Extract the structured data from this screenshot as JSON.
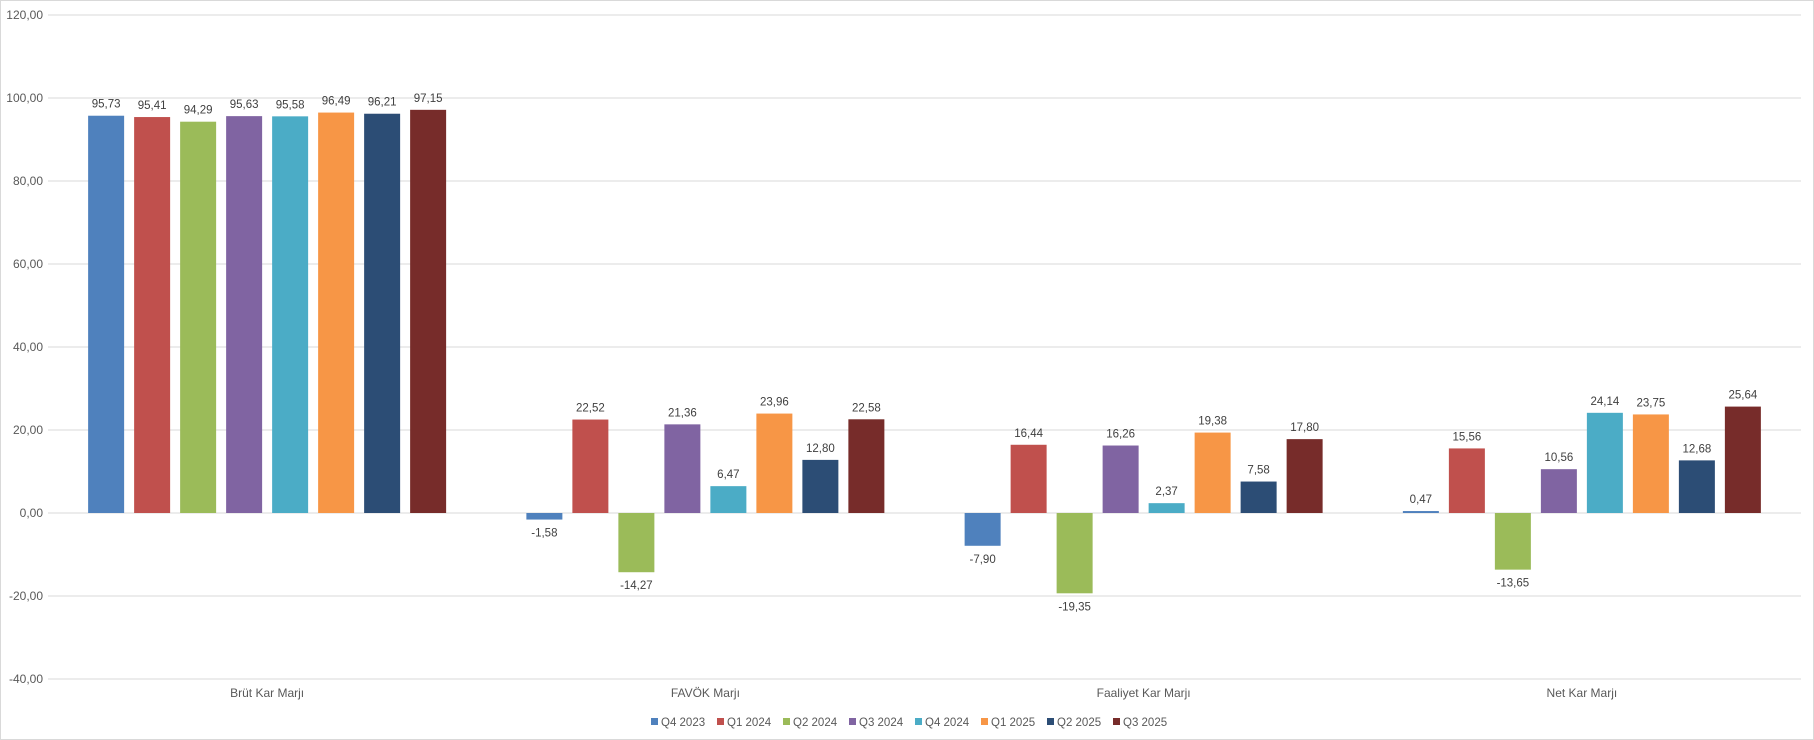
{
  "chart_data": {
    "type": "bar",
    "categories": [
      "Brüt Kar Marjı",
      "FAVÖK Marjı",
      "Faaliyet Kar Marjı",
      "Net Kar Marjı"
    ],
    "series": [
      {
        "name": "Q4 2023",
        "color": "#4f81bd",
        "values": [
          95.73,
          -1.58,
          -7.9,
          0.47
        ],
        "labels": [
          "95,73",
          "-1,58",
          "-7,90",
          "0,47"
        ]
      },
      {
        "name": "Q1 2024",
        "color": "#c0504d",
        "values": [
          95.41,
          22.52,
          16.44,
          15.56
        ],
        "labels": [
          "95,41",
          "22,52",
          "16,44",
          "15,56"
        ]
      },
      {
        "name": "Q2 2024",
        "color": "#9bbb59",
        "values": [
          94.29,
          -14.27,
          -19.35,
          -13.65
        ],
        "labels": [
          "94,29",
          "-14,27",
          "-19,35",
          "-13,65"
        ]
      },
      {
        "name": "Q3 2024",
        "color": "#8064a2",
        "values": [
          95.63,
          21.36,
          16.26,
          10.56
        ],
        "labels": [
          "95,63",
          "21,36",
          "16,26",
          "10,56"
        ]
      },
      {
        "name": "Q4 2024",
        "color": "#4bacc6",
        "values": [
          95.58,
          6.47,
          2.37,
          24.14
        ],
        "labels": [
          "95,58",
          "6,47",
          "2,37",
          "24,14"
        ]
      },
      {
        "name": "Q1 2025",
        "color": "#f79646",
        "values": [
          96.49,
          23.96,
          19.38,
          23.75
        ],
        "labels": [
          "96,49",
          "23,96",
          "19,38",
          "23,75"
        ]
      },
      {
        "name": "Q2 2025",
        "color": "#2c4d75",
        "values": [
          96.21,
          12.8,
          7.58,
          12.68
        ],
        "labels": [
          "96,21",
          "12,80",
          "7,58",
          "12,68"
        ]
      },
      {
        "name": "Q3 2025",
        "color": "#772c2a",
        "values": [
          97.15,
          22.58,
          17.8,
          25.64
        ],
        "labels": [
          "97,15",
          "22,58",
          "17,80",
          "25,64"
        ]
      }
    ],
    "y_ticks": [
      120,
      100,
      80,
      60,
      40,
      20,
      0,
      -20,
      -40
    ],
    "y_tick_labels": [
      "120,00",
      "100,00",
      "80,00",
      "60,00",
      "40,00",
      "20,00",
      "0,00",
      "-20,00",
      "-40,00"
    ],
    "ylim": [
      -40,
      120
    ],
    "grid": true,
    "legend_position": "bottom",
    "title": "",
    "xlabel": "",
    "ylabel": ""
  }
}
